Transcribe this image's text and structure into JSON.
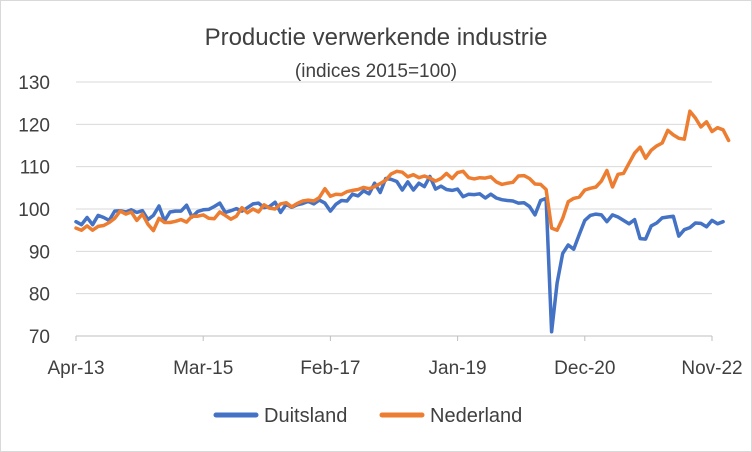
{
  "chart_data": {
    "type": "line",
    "title": "Productie verwerkende industrie",
    "subtitle": "(indices 2015=100)",
    "xlabel": "",
    "ylabel": "",
    "ylim": [
      70,
      130
    ],
    "yticks": [
      70,
      80,
      90,
      100,
      110,
      120,
      130
    ],
    "xlim": [
      0,
      115
    ],
    "xtick_labels": [
      {
        "index": 0,
        "label": "Apr-13"
      },
      {
        "index": 23,
        "label": "Mar-15"
      },
      {
        "index": 46,
        "label": "Feb-17"
      },
      {
        "index": 69,
        "label": "Jan-19"
      },
      {
        "index": 92,
        "label": "Dec-20"
      },
      {
        "index": 115,
        "label": "Nov-22"
      }
    ],
    "grid": true,
    "legend_position": "bottom",
    "series": [
      {
        "name": "Duitsland",
        "color": "#4472C4",
        "values": [
          97,
          96.3,
          98,
          96.3,
          98.5,
          98,
          97.3,
          99.5,
          99.6,
          99.3,
          99.8,
          99.2,
          99.6,
          97.5,
          98.5,
          100.7,
          97.2,
          99.3,
          99.5,
          99.5,
          100.9,
          98.1,
          99.4,
          99.8,
          99.9,
          100.6,
          101.4,
          99.2,
          99.6,
          100.1,
          99.5,
          100.3,
          101.2,
          101.4,
          100.3,
          100.6,
          101.6,
          99.2,
          101.1,
          100.4,
          101,
          101.3,
          101.8,
          101.2,
          102.1,
          101.4,
          99.5,
          101.1,
          102,
          101.9,
          103.5,
          103.1,
          104.3,
          103.6,
          106.1,
          103.9,
          107.2,
          107,
          106.5,
          104.5,
          106.4,
          104.5,
          106.1,
          105.3,
          107.7,
          104.7,
          105.4,
          104.6,
          104.4,
          104.7,
          102.9,
          103.5,
          103.4,
          103.6,
          102.6,
          103.5,
          102.6,
          102.2,
          102,
          101.9,
          101.4,
          101.5,
          100.6,
          98.6,
          102,
          102.5,
          71,
          82.5,
          89.5,
          91.5,
          90.5,
          94,
          97.3,
          98.5,
          98.8,
          98.6,
          97,
          98.6,
          98.1,
          97.3,
          96.5,
          97.5,
          93,
          92.9,
          96,
          96.7,
          97.9,
          98.1,
          98.3,
          93.6,
          95.1,
          95.6,
          96.7,
          96.6,
          95.8,
          97.3,
          96.5,
          97
        ]
      },
      {
        "name": "Nederland",
        "color": "#ED7D31",
        "values": [
          95.5,
          95,
          96,
          95,
          95.9,
          96.1,
          96.8,
          97.8,
          99.5,
          98.8,
          99.3,
          97.3,
          98.8,
          96.4,
          94.9,
          97.8,
          96.8,
          96.8,
          97.1,
          97.5,
          96.9,
          98.3,
          98.3,
          98.6,
          97.8,
          97.7,
          99.3,
          98.5,
          97.6,
          98.3,
          100.3,
          99.1,
          100,
          99.3,
          101,
          100.2,
          100,
          101.2,
          101.5,
          100.5,
          101.3,
          101.9,
          102.1,
          101.9,
          102.7,
          104.8,
          103,
          103.5,
          103.4,
          104.1,
          104.4,
          104.6,
          105.1,
          104.8,
          105.3,
          106,
          106.8,
          108.3,
          108.9,
          108.7,
          107.6,
          108.1,
          107.4,
          107.8,
          107.3,
          106.6,
          107.2,
          108.4,
          107.2,
          108.6,
          108.9,
          107.4,
          107.1,
          107.4,
          107.3,
          107.6,
          106.4,
          105.8,
          106.1,
          106.3,
          107.8,
          107.9,
          107.2,
          105.9,
          105.8,
          104.6,
          95.5,
          95,
          97.8,
          101.7,
          102.5,
          102.8,
          104.5,
          104.9,
          105.2,
          106.6,
          109.1,
          105.2,
          108.2,
          108.4,
          110.8,
          113.2,
          114.6,
          112,
          113.9,
          114.9,
          115.6,
          118.6,
          117.5,
          116.7,
          116.5,
          123.1,
          121.5,
          119.4,
          120.6,
          118.3,
          119.2,
          118.7,
          116.2
        ]
      }
    ]
  }
}
